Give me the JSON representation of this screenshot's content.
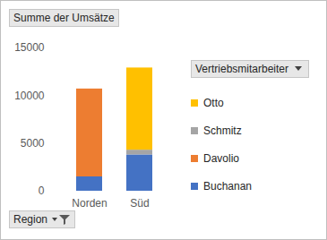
{
  "chart_data": {
    "type": "bar",
    "stacked": true,
    "title": "Summe der Umsätze",
    "xlabel": "Region",
    "legend_title": "Vertriebsmitarbeiter",
    "legend": "right",
    "categories": [
      "Norden",
      "Süd"
    ],
    "series": [
      {
        "name": "Buchanan",
        "color": "#4472c4",
        "values": [
          1500,
          3800
        ]
      },
      {
        "name": "Davolio",
        "color": "#ed7d31",
        "values": [
          9200,
          null
        ]
      },
      {
        "name": "Schmitz",
        "color": "#a5a5a5",
        "values": [
          null,
          500
        ]
      },
      {
        "name": "Otto",
        "color": "#ffc000",
        "values": [
          null,
          8600
        ]
      }
    ],
    "ylim": [
      0,
      15000
    ],
    "yticks": [
      0,
      5000,
      10000,
      15000
    ],
    "grid": false
  }
}
